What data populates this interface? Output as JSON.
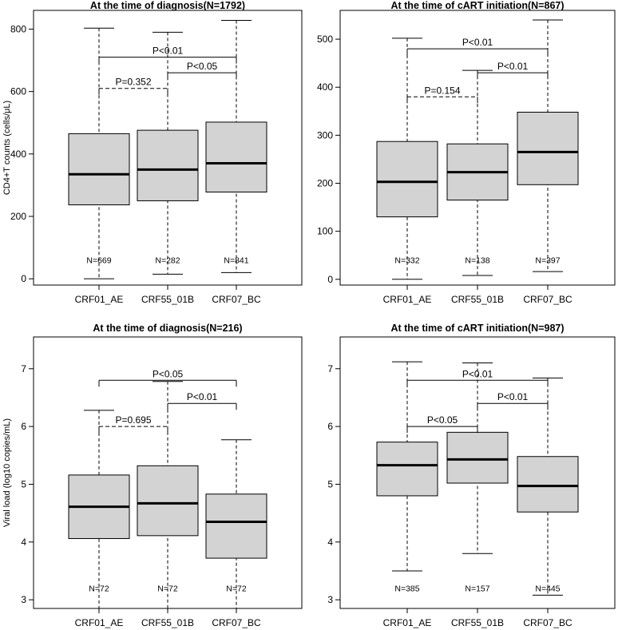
{
  "chart_data": [
    {
      "type": "boxplot",
      "title": "At the time of diagnosis(N=1792)",
      "ylabel": "CD4+T counts (cells/μL)",
      "ylim": [
        -20,
        860
      ],
      "yticks": [
        0,
        200,
        400,
        600,
        800
      ],
      "categories": [
        "CRF01_AE",
        "CRF55_01B",
        "CRF07_BC"
      ],
      "boxes": [
        {
          "min": 0,
          "q1": 237,
          "median": 335,
          "q3": 465,
          "max": 803,
          "n_label": "N=669"
        },
        {
          "min": 15,
          "q1": 250,
          "median": 350,
          "q3": 476,
          "max": 790,
          "n_label": "N=282"
        },
        {
          "min": 20,
          "q1": 278,
          "median": 370,
          "q3": 502,
          "max": 828,
          "n_label": "N=841"
        }
      ],
      "n_label_y": 60,
      "comparisons": [
        {
          "from": 0,
          "to": 1,
          "y": 610,
          "label": "P=0.352",
          "dashed": true
        },
        {
          "from": 1,
          "to": 2,
          "y": 660,
          "label": "P<0.05",
          "dashed": false
        },
        {
          "from": 0,
          "to": 2,
          "y": 710,
          "label": "P<0.01",
          "dashed": false
        }
      ]
    },
    {
      "type": "boxplot",
      "title": "At the time of cART initiation(N=867)",
      "ylabel": "",
      "ylim": [
        -12,
        560
      ],
      "yticks": [
        0,
        100,
        200,
        300,
        400,
        500
      ],
      "categories": [
        "CRF01_AE",
        "CRF55_01B",
        "CRF07_BC"
      ],
      "boxes": [
        {
          "min": 0,
          "q1": 130,
          "median": 203,
          "q3": 287,
          "max": 502,
          "n_label": "N=332"
        },
        {
          "min": 8,
          "q1": 165,
          "median": 223,
          "q3": 282,
          "max": 435,
          "n_label": "N=138"
        },
        {
          "min": 16,
          "q1": 197,
          "median": 265,
          "q3": 348,
          "max": 540,
          "n_label": "N=397"
        }
      ],
      "n_label_y": 40,
      "comparisons": [
        {
          "from": 0,
          "to": 1,
          "y": 380,
          "label": "P=0.154",
          "dashed": true
        },
        {
          "from": 1,
          "to": 2,
          "y": 430,
          "label": "P<0.01",
          "dashed": false
        },
        {
          "from": 0,
          "to": 2,
          "y": 480,
          "label": "P<0.01",
          "dashed": false
        }
      ]
    },
    {
      "type": "boxplot",
      "title": "At the time of diagnosis(N=216)",
      "ylabel": "Viral load (log10 copies/mL)",
      "ylim": [
        2.85,
        7.55
      ],
      "yticks": [
        3,
        4,
        5,
        6,
        7
      ],
      "categories": [
        "CRF01_AE",
        "CRF55_01B",
        "CRF07_BC"
      ],
      "boxes": [
        {
          "min": null,
          "q1": 4.06,
          "median": 4.61,
          "q3": 5.16,
          "max": 6.28,
          "n_label": "N=72"
        },
        {
          "min": null,
          "q1": 4.11,
          "median": 4.67,
          "q3": 5.32,
          "max": 6.78,
          "n_label": "N=72"
        },
        {
          "min": null,
          "q1": 3.72,
          "median": 4.35,
          "q3": 4.83,
          "max": 5.77,
          "n_label": "N=72"
        }
      ],
      "n_label_y": 3.2,
      "comparisons": [
        {
          "from": 0,
          "to": 1,
          "y": 6.0,
          "label": "P=0.695",
          "dashed": true
        },
        {
          "from": 1,
          "to": 2,
          "y": 6.4,
          "label": "P<0.01",
          "dashed": false
        },
        {
          "from": 0,
          "to": 2,
          "y": 6.8,
          "label": "P<0.05",
          "dashed": false
        }
      ]
    },
    {
      "type": "boxplot",
      "title": "At the time of cART initiation(N=987)",
      "ylabel": "",
      "ylim": [
        2.85,
        7.55
      ],
      "yticks": [
        3,
        4,
        5,
        6,
        7
      ],
      "categories": [
        "CRF01_AE",
        "CRF55_01B",
        "CRF07_BC"
      ],
      "boxes": [
        {
          "min": 3.5,
          "q1": 4.8,
          "median": 5.33,
          "q3": 5.73,
          "max": 7.12,
          "n_label": "N=385"
        },
        {
          "min": 3.8,
          "q1": 5.02,
          "median": 5.43,
          "q3": 5.9,
          "max": 7.1,
          "n_label": "N=157"
        },
        {
          "min": 3.08,
          "q1": 4.52,
          "median": 4.97,
          "q3": 5.48,
          "max": 6.84,
          "n_label": "N=445"
        }
      ],
      "n_label_y": 3.2,
      "comparisons": [
        {
          "from": 0,
          "to": 1,
          "y": 6.0,
          "label": "P<0.05",
          "dashed": false
        },
        {
          "from": 1,
          "to": 2,
          "y": 6.4,
          "label": "P<0.01",
          "dashed": false
        },
        {
          "from": 0,
          "to": 2,
          "y": 6.8,
          "label": "P<0.01",
          "dashed": false
        }
      ]
    }
  ],
  "colors": {
    "box_fill": "#d3d3d3",
    "stroke": "#000000",
    "background": "#ffffff"
  }
}
